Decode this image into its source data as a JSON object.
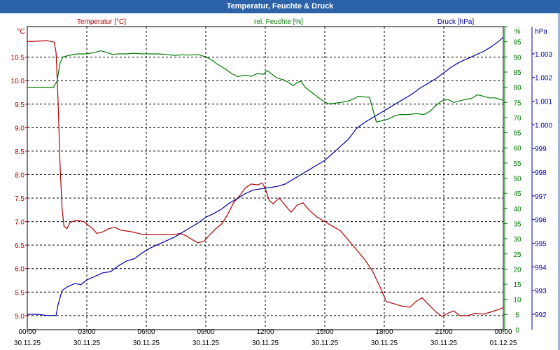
{
  "window": {
    "title": "Temperatur, Feuchte & Druck"
  },
  "colors": {
    "temperature": "#b00000",
    "humidity": "#007a00",
    "pressure": "#0000a0",
    "title_bar": "#2b62a8",
    "grid": "#000000"
  },
  "chart_data": {
    "type": "line",
    "title": "Temperatur, Feuchte & Druck",
    "x": {
      "unit": "hours since 30.11.25 00:00",
      "range": [
        0,
        24
      ],
      "ticks": [
        {
          "h": 0,
          "time": "00:00",
          "date": "30.11.25"
        },
        {
          "h": 3,
          "time": "03:00",
          "date": "30.11.25"
        },
        {
          "h": 6,
          "time": "06:00",
          "date": "30.11.25"
        },
        {
          "h": 9,
          "time": "09:00",
          "date": "30.11.25"
        },
        {
          "h": 12,
          "time": "12:00",
          "date": "30.11.25"
        },
        {
          "h": 15,
          "time": "15:00",
          "date": "30.11.25"
        },
        {
          "h": 18,
          "time": "18:00",
          "date": "30.11.25"
        },
        {
          "h": 21,
          "time": "21:00",
          "date": "30.11.25"
        },
        {
          "h": 24,
          "time": "00:00",
          "date": "01.12.25"
        }
      ]
    },
    "axes": {
      "temperature": {
        "label": "Temperatur [°C]",
        "unit": "°C",
        "range": [
          4.7,
          11.15
        ],
        "ticks": [
          5.0,
          5.5,
          6.0,
          6.5,
          7.0,
          7.5,
          8.0,
          8.5,
          9.0,
          9.5,
          10.0,
          10.5
        ],
        "tick_labels": [
          "5.0",
          "5.5",
          "6.0",
          "6.5",
          "7.0",
          "7.5",
          "8.0",
          "8.5",
          "9.0",
          "9.5",
          "10.0",
          "10.5"
        ]
      },
      "humidity": {
        "label": "rel. Feuchte [%]",
        "unit": "%",
        "range": [
          0,
          100
        ],
        "ticks": [
          0,
          5,
          10,
          15,
          20,
          25,
          30,
          35,
          40,
          45,
          50,
          55,
          60,
          65,
          70,
          75,
          80,
          85,
          90,
          95,
          100
        ],
        "tick_labels": [
          "0",
          "5",
          "10",
          "15",
          "20",
          "25",
          "30",
          "35",
          "40",
          "45",
          "50",
          "55",
          "60",
          "65",
          "70",
          "75",
          "80",
          "85",
          "90",
          "95",
          "%"
        ]
      },
      "pressure": {
        "label": "Druck [hPa]",
        "unit": "hPa",
        "range": [
          991.35,
          1004.15
        ],
        "ticks": [
          992,
          993,
          994,
          995,
          996,
          997,
          998,
          999,
          1000,
          1001,
          1002,
          1003
        ],
        "tick_labels": [
          "992",
          "993",
          "994",
          "995",
          "996",
          "997",
          "998",
          "999",
          "1.000",
          "1.001",
          "1.002",
          "1.003"
        ],
        "top_label": "hPa"
      }
    },
    "series": [
      {
        "name": "Temperatur [°C]",
        "axis": "temperature",
        "color": "#b00000",
        "points": [
          [
            0,
            10.83
          ],
          [
            1.0,
            10.85
          ],
          [
            1.35,
            10.82
          ],
          [
            1.45,
            10.6
          ],
          [
            1.55,
            9.6
          ],
          [
            1.65,
            8.2
          ],
          [
            1.75,
            7.3
          ],
          [
            1.85,
            6.9
          ],
          [
            2.0,
            6.85
          ],
          [
            2.15,
            6.98
          ],
          [
            2.5,
            7.03
          ],
          [
            2.85,
            7.0
          ],
          [
            3.0,
            6.95
          ],
          [
            3.3,
            6.85
          ],
          [
            3.5,
            6.75
          ],
          [
            3.8,
            6.78
          ],
          [
            4.1,
            6.85
          ],
          [
            4.4,
            6.88
          ],
          [
            4.7,
            6.82
          ],
          [
            5.0,
            6.8
          ],
          [
            5.3,
            6.78
          ],
          [
            5.6,
            6.75
          ],
          [
            5.9,
            6.72
          ],
          [
            6.2,
            6.72
          ],
          [
            6.5,
            6.73
          ],
          [
            6.8,
            6.72
          ],
          [
            7.1,
            6.73
          ],
          [
            7.4,
            6.72
          ],
          [
            7.7,
            6.75
          ],
          [
            8.0,
            6.7
          ],
          [
            8.3,
            6.62
          ],
          [
            8.6,
            6.55
          ],
          [
            8.9,
            6.58
          ],
          [
            9.2,
            6.72
          ],
          [
            9.5,
            6.85
          ],
          [
            9.8,
            6.95
          ],
          [
            10.1,
            7.15
          ],
          [
            10.4,
            7.4
          ],
          [
            10.7,
            7.55
          ],
          [
            11.0,
            7.72
          ],
          [
            11.3,
            7.8
          ],
          [
            11.6,
            7.78
          ],
          [
            11.85,
            7.82
          ],
          [
            12.0,
            7.7
          ],
          [
            12.2,
            7.45
          ],
          [
            12.4,
            7.38
          ],
          [
            12.7,
            7.5
          ],
          [
            13.0,
            7.35
          ],
          [
            13.3,
            7.2
          ],
          [
            13.6,
            7.35
          ],
          [
            13.9,
            7.4
          ],
          [
            14.2,
            7.25
          ],
          [
            14.6,
            7.1
          ],
          [
            15.0,
            7.0
          ],
          [
            15.4,
            6.9
          ],
          [
            15.8,
            6.8
          ],
          [
            16.2,
            6.6
          ],
          [
            16.6,
            6.4
          ],
          [
            17.0,
            6.2
          ],
          [
            17.4,
            5.95
          ],
          [
            17.8,
            5.6
          ],
          [
            18.1,
            5.3
          ],
          [
            18.5,
            5.25
          ],
          [
            18.9,
            5.2
          ],
          [
            19.3,
            5.18
          ],
          [
            19.6,
            5.3
          ],
          [
            19.9,
            5.38
          ],
          [
            20.2,
            5.25
          ],
          [
            20.6,
            5.08
          ],
          [
            20.9,
            4.98
          ],
          [
            21.2,
            5.05
          ],
          [
            21.5,
            5.1
          ],
          [
            21.8,
            5.0
          ],
          [
            22.2,
            5.0
          ],
          [
            22.6,
            5.05
          ],
          [
            23.0,
            5.03
          ],
          [
            23.4,
            5.08
          ],
          [
            23.7,
            5.12
          ],
          [
            24.0,
            5.17
          ]
        ]
      },
      {
        "name": "rel. Feuchte [%]",
        "axis": "humidity",
        "color": "#007a00",
        "points": [
          [
            0,
            80.0
          ],
          [
            1.0,
            80.0
          ],
          [
            1.3,
            79.8
          ],
          [
            1.5,
            82.0
          ],
          [
            1.65,
            88.0
          ],
          [
            1.8,
            90.0
          ],
          [
            2.1,
            90.5
          ],
          [
            2.5,
            91.0
          ],
          [
            3.0,
            91.0
          ],
          [
            3.4,
            91.5
          ],
          [
            3.7,
            92.0
          ],
          [
            4.0,
            91.5
          ],
          [
            4.3,
            90.8
          ],
          [
            4.6,
            91.0
          ],
          [
            5.0,
            91.0
          ],
          [
            5.4,
            91.2
          ],
          [
            5.8,
            91.0
          ],
          [
            6.2,
            91.0
          ],
          [
            6.6,
            91.0
          ],
          [
            7.0,
            90.8
          ],
          [
            7.4,
            90.5
          ],
          [
            7.8,
            90.7
          ],
          [
            8.2,
            90.6
          ],
          [
            8.6,
            90.8
          ],
          [
            9.0,
            90.0
          ],
          [
            9.3,
            89.0
          ],
          [
            9.6,
            87.5
          ],
          [
            10.0,
            86.0
          ],
          [
            10.3,
            84.5
          ],
          [
            10.6,
            83.5
          ],
          [
            11.0,
            84.0
          ],
          [
            11.3,
            83.6
          ],
          [
            11.6,
            84.5
          ],
          [
            11.9,
            84.3
          ],
          [
            12.1,
            85.5
          ],
          [
            12.3,
            84.5
          ],
          [
            12.6,
            83.0
          ],
          [
            12.9,
            82.5
          ],
          [
            13.2,
            81.5
          ],
          [
            13.4,
            80.5
          ],
          [
            13.6,
            81.5
          ],
          [
            13.8,
            82.0
          ],
          [
            14.0,
            80.0
          ],
          [
            14.3,
            78.5
          ],
          [
            14.6,
            77.0
          ],
          [
            14.9,
            75.5
          ],
          [
            15.2,
            74.5
          ],
          [
            15.5,
            74.7
          ],
          [
            15.8,
            75.0
          ],
          [
            16.1,
            75.3
          ],
          [
            16.4,
            76.0
          ],
          [
            16.7,
            77.0
          ],
          [
            17.0,
            76.8
          ],
          [
            17.25,
            76.7
          ],
          [
            17.45,
            72.0
          ],
          [
            17.6,
            68.5
          ],
          [
            17.9,
            69.0
          ],
          [
            18.2,
            69.5
          ],
          [
            18.5,
            70.5
          ],
          [
            18.8,
            71.0
          ],
          [
            19.2,
            71.0
          ],
          [
            19.6,
            71.3
          ],
          [
            20.0,
            71.0
          ],
          [
            20.3,
            72.0
          ],
          [
            20.6,
            74.0
          ],
          [
            20.9,
            75.5
          ],
          [
            21.2,
            76.0
          ],
          [
            21.5,
            75.0
          ],
          [
            21.8,
            75.5
          ],
          [
            22.1,
            76.0
          ],
          [
            22.4,
            76.3
          ],
          [
            22.7,
            77.5
          ],
          [
            23.0,
            77.0
          ],
          [
            23.3,
            76.5
          ],
          [
            23.6,
            76.5
          ],
          [
            23.9,
            75.8
          ],
          [
            24.0,
            75.8
          ]
        ]
      },
      {
        "name": "Druck [hPa]",
        "axis": "pressure",
        "color": "#0000a0",
        "points": [
          [
            0,
            992.0
          ],
          [
            0.5,
            992.0
          ],
          [
            1.0,
            991.95
          ],
          [
            1.45,
            991.95
          ],
          [
            1.55,
            992.4
          ],
          [
            1.75,
            993.0
          ],
          [
            2.0,
            993.15
          ],
          [
            2.4,
            993.3
          ],
          [
            2.7,
            993.25
          ],
          [
            3.0,
            993.45
          ],
          [
            3.4,
            993.6
          ],
          [
            3.8,
            993.75
          ],
          [
            4.2,
            993.8
          ],
          [
            4.6,
            994.05
          ],
          [
            5.0,
            994.25
          ],
          [
            5.4,
            994.35
          ],
          [
            5.8,
            994.6
          ],
          [
            6.2,
            994.8
          ],
          [
            6.6,
            994.95
          ],
          [
            7.0,
            995.1
          ],
          [
            7.4,
            995.25
          ],
          [
            7.8,
            995.45
          ],
          [
            8.2,
            995.65
          ],
          [
            8.6,
            995.85
          ],
          [
            9.0,
            996.1
          ],
          [
            9.4,
            996.25
          ],
          [
            9.8,
            996.45
          ],
          [
            10.2,
            996.7
          ],
          [
            10.6,
            996.9
          ],
          [
            11.0,
            997.1
          ],
          [
            11.4,
            997.25
          ],
          [
            11.8,
            997.3
          ],
          [
            12.2,
            997.35
          ],
          [
            12.6,
            997.4
          ],
          [
            13.0,
            997.5
          ],
          [
            13.4,
            997.7
          ],
          [
            13.8,
            997.9
          ],
          [
            14.2,
            998.1
          ],
          [
            14.6,
            998.3
          ],
          [
            15.0,
            998.5
          ],
          [
            15.4,
            998.8
          ],
          [
            15.8,
            999.1
          ],
          [
            16.2,
            999.4
          ],
          [
            16.6,
            999.85
          ],
          [
            17.0,
            1000.1
          ],
          [
            17.4,
            1000.3
          ],
          [
            17.8,
            1000.5
          ],
          [
            18.2,
            1000.7
          ],
          [
            18.6,
            1000.9
          ],
          [
            19.0,
            1001.1
          ],
          [
            19.4,
            1001.3
          ],
          [
            19.8,
            1001.55
          ],
          [
            20.2,
            1001.75
          ],
          [
            20.6,
            1001.95
          ],
          [
            21.0,
            1002.2
          ],
          [
            21.4,
            1002.45
          ],
          [
            21.8,
            1002.65
          ],
          [
            22.2,
            1002.8
          ],
          [
            22.6,
            1002.95
          ],
          [
            23.0,
            1003.1
          ],
          [
            23.4,
            1003.3
          ],
          [
            23.8,
            1003.55
          ],
          [
            24.0,
            1003.7
          ]
        ]
      }
    ]
  }
}
